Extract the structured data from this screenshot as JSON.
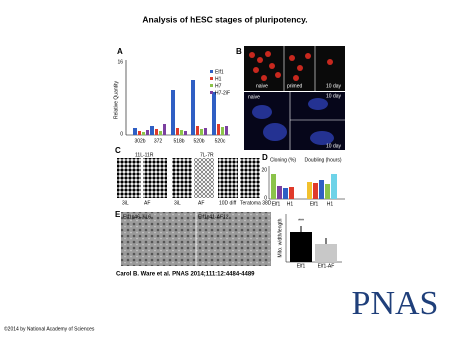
{
  "header": {
    "title": "Analysis of hESC stages of pluripotency."
  },
  "figure": {
    "panel_a": {
      "label": "A",
      "y_axis": "Relative Quantity",
      "ticks": [
        "16",
        "0"
      ],
      "legend": [
        "Elf1",
        "H1",
        "H7",
        "H7-2iF"
      ],
      "categories": [
        "302b",
        "372",
        "518b",
        "520b",
        "520c"
      ]
    },
    "panel_b": {
      "label": "B",
      "images": [
        "naive",
        "primed",
        "10 day",
        "naive",
        "10 day",
        "10 day"
      ]
    },
    "panel_c": {
      "label": "C",
      "groups": [
        "11L-11R",
        "7L-7R"
      ],
      "columns": [
        "3iL",
        "AF",
        "3iL",
        "AF",
        "10D diff",
        "Teratoma 38D"
      ]
    },
    "panel_d": {
      "label": "D",
      "titles": [
        "Cloning (%)",
        "Doubling (hours)"
      ],
      "ticks": [
        "20",
        "0"
      ],
      "categories": [
        "Elf1",
        "H1",
        "Elf1",
        "H1"
      ]
    },
    "panel_e": {
      "label": "E",
      "images": [
        "Elf1p46-3iL6",
        "Elf1p41-AF12"
      ],
      "y_axis": "Mito. width/length",
      "significance": "***",
      "categories": [
        "Elf1",
        "Elf1-AF"
      ]
    }
  },
  "caption": "Carol B. Ware et al. PNAS 2014;111:12:4484-4489",
  "logo": "PNAS",
  "copyright": "©2014 by National Academy of Sciences"
}
